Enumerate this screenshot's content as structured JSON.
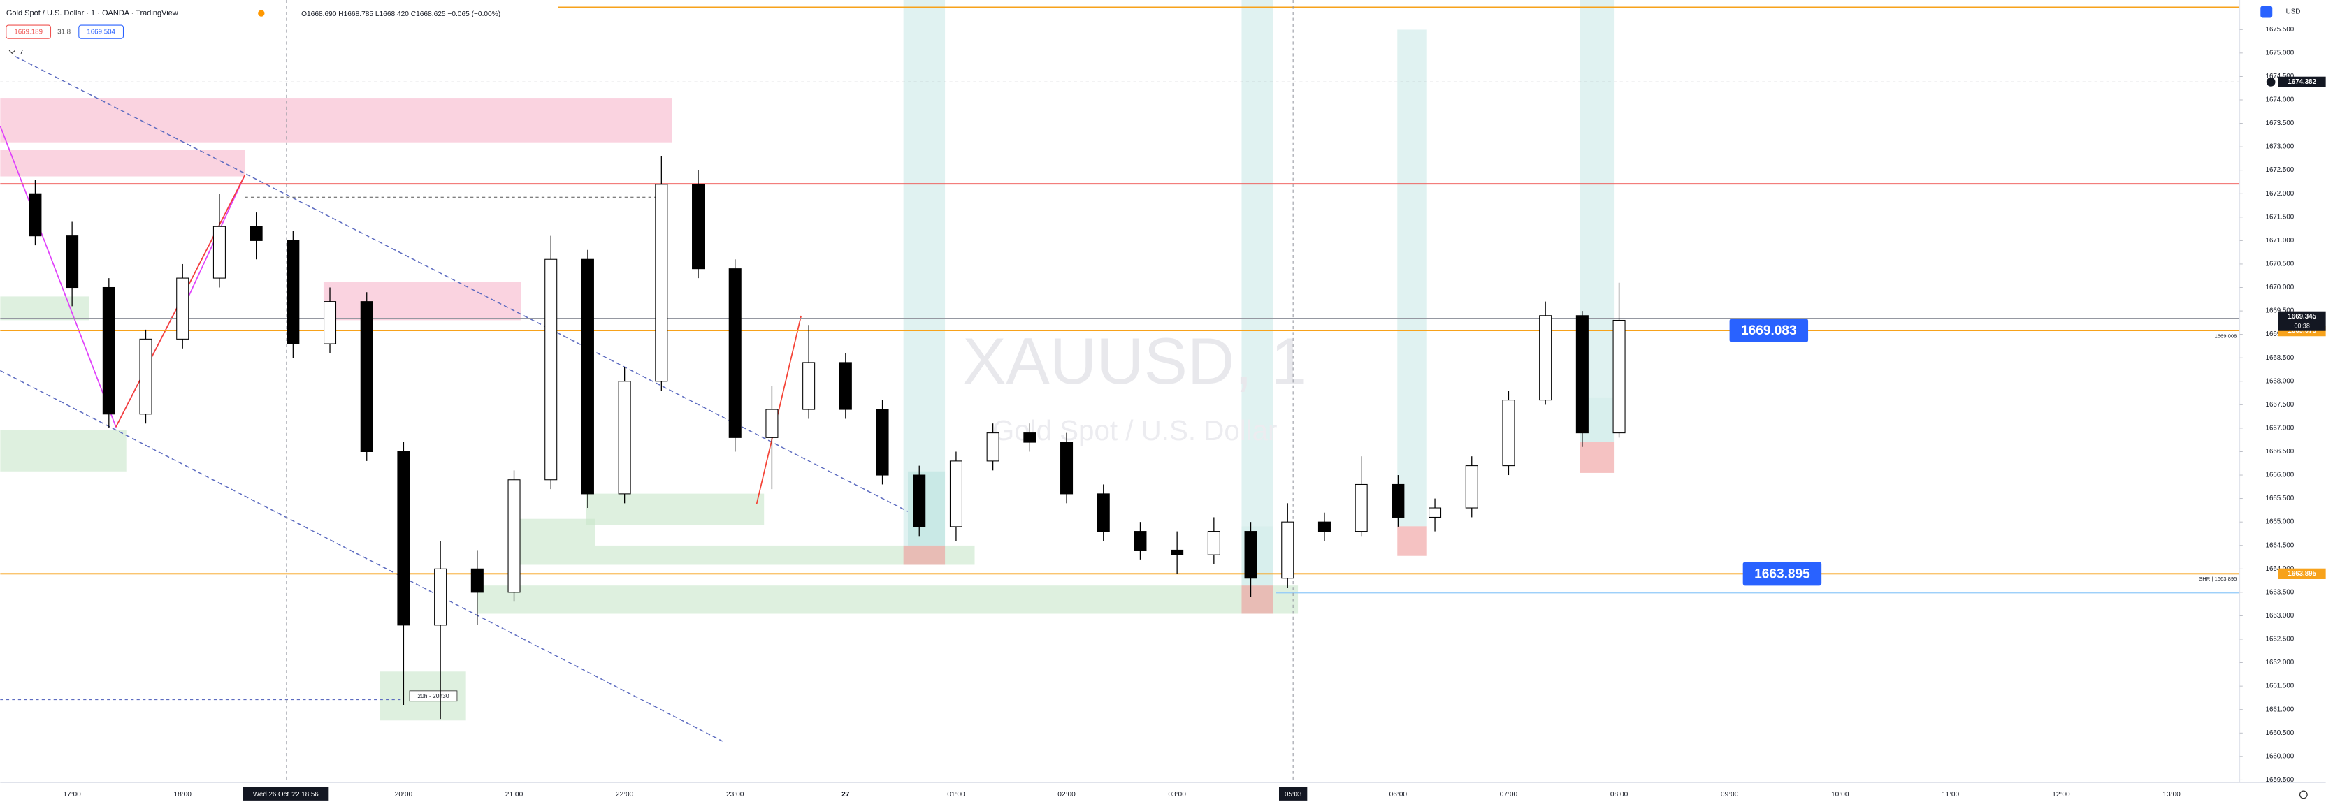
{
  "header": {
    "symbol": "Gold Spot / U.S. Dollar · 1 · OANDA · TradingView",
    "ohlc": "O1668.690 H1668.785 L1668.420 C1668.625 −0.065 (−0.00%)",
    "sell": "1669.189",
    "spread": "31.8",
    "buy": "1669.504",
    "indicators": "7"
  },
  "chart_data": {
    "type": "candlestick",
    "watermark": "XAUUSD, 1",
    "watermark_subtitle": "Gold Spot / U.S. Dollar",
    "y_unit": "USD",
    "x": [
      "16:40",
      "17:00",
      "17:20",
      "17:40",
      "18:00",
      "18:20",
      "18:40",
      "19:00",
      "19:20",
      "19:40",
      "20:00",
      "20:20",
      "20:40",
      "21:00",
      "21:20",
      "21:40",
      "22:00",
      "22:20",
      "22:40",
      "23:00",
      "23:20",
      "23:40",
      "00:00",
      "00:20",
      "00:40",
      "01:00",
      "01:20",
      "01:40",
      "02:00",
      "02:20",
      "02:40",
      "03:00",
      "03:20",
      "03:40",
      "05:00",
      "05:20",
      "05:40",
      "06:00",
      "06:20",
      "06:40",
      "07:00",
      "07:20",
      "07:40",
      "08:00"
    ],
    "open": [
      1672.0,
      1671.1,
      1670.0,
      1667.3,
      1668.9,
      1670.2,
      1671.3,
      1671.0,
      1668.8,
      1669.7,
      1666.5,
      1662.8,
      1664.0,
      1663.5,
      1665.9,
      1670.6,
      1665.6,
      1668.0,
      1672.2,
      1670.4,
      1666.8,
      1667.4,
      1668.4,
      1667.4,
      1666.0,
      1664.9,
      1666.3,
      1666.9,
      1666.7,
      1665.6,
      1664.8,
      1664.4,
      1664.3,
      1664.8,
      1663.8,
      1665.0,
      1664.8,
      1665.8,
      1665.1,
      1665.3,
      1666.2,
      1667.6,
      1669.4,
      1666.9
    ],
    "high": [
      1672.3,
      1671.4,
      1670.2,
      1669.1,
      1670.5,
      1672.0,
      1671.6,
      1671.2,
      1670.0,
      1669.9,
      1666.7,
      1664.6,
      1664.4,
      1666.1,
      1671.1,
      1670.8,
      1668.3,
      1672.8,
      1672.5,
      1670.6,
      1667.9,
      1669.2,
      1668.6,
      1667.6,
      1666.2,
      1666.5,
      1667.1,
      1667.1,
      1666.9,
      1665.8,
      1665.0,
      1664.8,
      1665.1,
      1665.0,
      1665.4,
      1665.2,
      1666.4,
      1666.0,
      1665.5,
      1666.4,
      1667.8,
      1669.7,
      1669.5,
      1670.1
    ],
    "low": [
      1670.9,
      1669.6,
      1667.0,
      1667.1,
      1668.7,
      1670.0,
      1670.6,
      1668.5,
      1668.6,
      1666.3,
      1661.1,
      1660.8,
      1662.8,
      1663.3,
      1665.7,
      1665.3,
      1665.4,
      1667.8,
      1670.2,
      1666.5,
      1665.7,
      1667.2,
      1667.2,
      1665.8,
      1664.7,
      1664.6,
      1666.1,
      1666.5,
      1665.4,
      1664.6,
      1664.2,
      1663.9,
      1664.1,
      1663.4,
      1663.6,
      1664.6,
      1664.7,
      1664.9,
      1664.8,
      1665.1,
      1666.0,
      1667.5,
      1666.6,
      1666.8
    ],
    "close": [
      1671.1,
      1670.0,
      1667.3,
      1668.9,
      1670.2,
      1671.3,
      1671.0,
      1668.8,
      1669.7,
      1666.5,
      1662.8,
      1664.0,
      1663.5,
      1665.9,
      1670.6,
      1665.6,
      1668.0,
      1672.2,
      1670.4,
      1666.8,
      1667.4,
      1668.4,
      1667.4,
      1666.0,
      1664.9,
      1666.3,
      1666.9,
      1666.7,
      1665.6,
      1664.8,
      1664.4,
      1664.3,
      1664.8,
      1663.8,
      1665.0,
      1664.8,
      1665.8,
      1665.1,
      1665.3,
      1666.2,
      1667.6,
      1669.4,
      1666.9,
      1669.3
    ],
    "up_color": "#ffffff",
    "down_color": "#000000",
    "xlim": [
      "16:21",
      "13:37"
    ],
    "xticks": [
      "17:00",
      "18:00",
      "20:00",
      "21:00",
      "22:00",
      "23:00",
      "27",
      "01:00",
      "02:00",
      "03:00",
      "06:00",
      "07:00",
      "08:00",
      "09:00",
      "10:00",
      "11:00",
      "12:00",
      "13:00"
    ],
    "cursor_label": "Wed 26 Oct '22 18:56",
    "ylim": [
      1659.44,
      1676.13
    ],
    "yticks": [
      {
        "value": 1659.5,
        "label": "1659.500"
      },
      {
        "value": 1660,
        "label": "1660.000"
      },
      {
        "value": 1660.5,
        "label": "1660.500"
      },
      {
        "value": 1661,
        "label": "1661.000"
      },
      {
        "value": 1661.5,
        "label": "1661.500"
      },
      {
        "value": 1662,
        "label": "1662.000"
      },
      {
        "value": 1662.5,
        "label": "1662.500"
      },
      {
        "value": 1663,
        "label": "1663.000"
      },
      {
        "value": 1663.5,
        "label": "1663.500"
      },
      {
        "value": 1664,
        "label": "1664.000"
      },
      {
        "value": 1664.5,
        "label": "1664.500"
      },
      {
        "value": 1665,
        "label": "1665.000"
      },
      {
        "value": 1665.5,
        "label": "1665.500"
      },
      {
        "value": 1666,
        "label": "1666.000"
      },
      {
        "value": 1666.5,
        "label": "1666.500"
      },
      {
        "value": 1667,
        "label": "1667.000"
      },
      {
        "value": 1667.5,
        "label": "1667.500"
      },
      {
        "value": 1668,
        "label": "1668.000"
      },
      {
        "value": 1668.5,
        "label": "1668.500"
      },
      {
        "value": 1669,
        "label": "1669.000"
      },
      {
        "value": 1669.5,
        "label": "1669.500"
      },
      {
        "value": 1670,
        "label": "1670.000"
      },
      {
        "value": 1670.5,
        "label": "1670.500"
      },
      {
        "value": 1671,
        "label": "1671.000"
      },
      {
        "value": 1671.5,
        "label": "1671.500"
      },
      {
        "value": 1672,
        "label": "1672.000"
      },
      {
        "value": 1672.5,
        "label": "1672.500"
      },
      {
        "value": 1673,
        "label": "1673.000"
      },
      {
        "value": 1673.5,
        "label": "1673.500"
      },
      {
        "value": 1674,
        "label": "1674.000"
      },
      {
        "value": 1674.5,
        "label": "1674.500"
      },
      {
        "value": 1675,
        "label": "1675.000"
      },
      {
        "value": 1675.5,
        "label": "1675.500"
      }
    ],
    "levels": [
      {
        "value": 1669.083,
        "color": "#f7a21b",
        "badge": true
      },
      {
        "value": 1663.895,
        "color": "#f7a21b",
        "badge": true
      },
      {
        "value": 1672.21,
        "color": "#ef5350",
        "badge": false
      }
    ],
    "current_price": 1669.345,
    "countdown": "00:38",
    "axis_badges": [
      {
        "value": 1669.075,
        "color": "#f7a21b"
      },
      {
        "value": 1663.895,
        "color": "#f7a21b"
      }
    ],
    "line_label": 1669.008,
    "shr_label": "SHR | 1663.895",
    "crosshair": {
      "x": "05:03",
      "price": 1674.382
    },
    "annotation": "20h - 20h30"
  }
}
